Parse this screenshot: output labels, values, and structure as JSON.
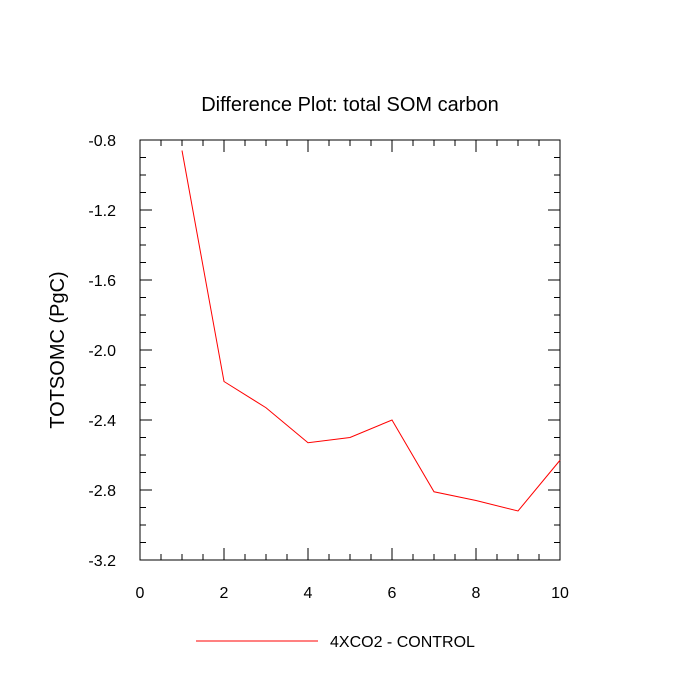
{
  "chart_data": {
    "type": "line",
    "title": "Difference Plot: total SOM carbon",
    "xlabel": "",
    "ylabel": "TOTSOMC  (PgC)",
    "xlim": [
      0,
      10
    ],
    "ylim": [
      -3.2,
      -0.8
    ],
    "xticks": [
      0,
      2,
      4,
      6,
      8,
      10
    ],
    "xtick_labels": [
      "0",
      "2",
      "4",
      "6",
      "8",
      "10"
    ],
    "yticks": [
      -0.8,
      -1.2,
      -1.6,
      -2.0,
      -2.4,
      -2.8,
      -3.2
    ],
    "ytick_labels": [
      "-0.8",
      "-1.2",
      "-1.6",
      "-2.0",
      "-2.4",
      "-2.8",
      "-3.2"
    ],
    "grid": false,
    "legend_position": "bottom",
    "series": [
      {
        "name": "4XCO2 - CONTROL",
        "color": "#ff0000",
        "x": [
          1,
          2,
          3,
          4,
          5,
          6,
          7,
          8,
          9,
          10
        ],
        "values": [
          -0.86,
          -2.18,
          -2.33,
          -2.53,
          -2.5,
          -2.4,
          -2.81,
          -2.86,
          -2.92,
          -2.63
        ]
      }
    ]
  }
}
